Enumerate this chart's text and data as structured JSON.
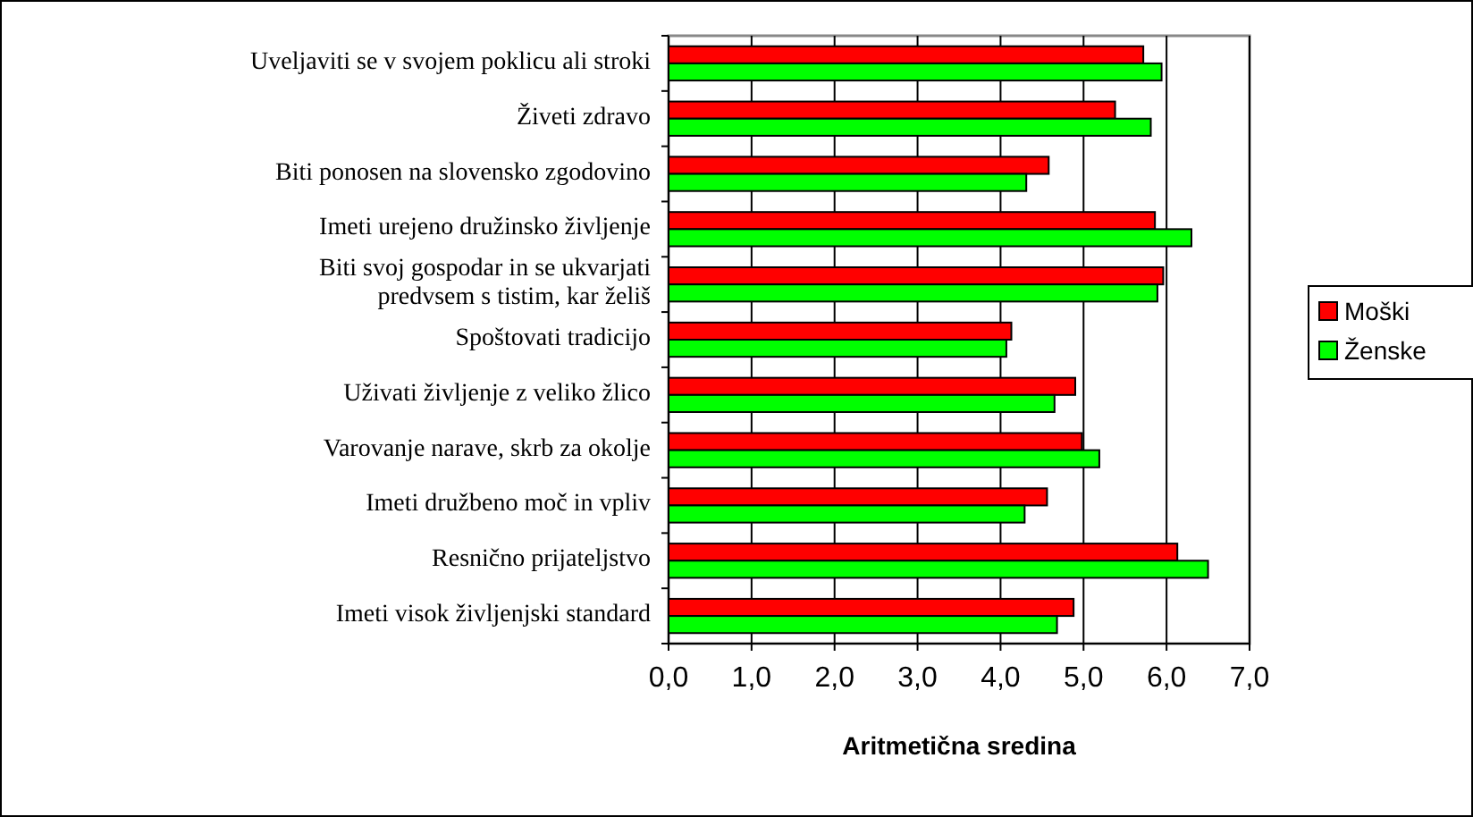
{
  "chart_data": {
    "type": "bar",
    "orientation": "horizontal",
    "xlabel": "Aritmetična sredina",
    "categories": [
      "Uveljaviti se v svojem poklicu ali stroki",
      "Živeti zdravo",
      "Biti ponosen na slovensko zgodovino",
      "Imeti urejeno družinsko življenje",
      "Biti svoj gospodar in se ukvarjati predvsem s tistim, kar želiš",
      "Spoštovati tradicijo",
      "Uživati življenje z veliko žlico",
      "Varovanje narave, skrb za okolje",
      "Imeti družbeno moč in vpliv",
      "Resnično prijateljstvo",
      "Imeti visok življenjski standard"
    ],
    "series": [
      {
        "name": "Moški",
        "color": "#ff0000",
        "values": [
          5.72,
          5.38,
          4.58,
          5.86,
          5.96,
          4.13,
          4.9,
          4.98,
          4.56,
          6.13,
          4.88
        ]
      },
      {
        "name": "Ženske",
        "color": "#00ff00",
        "values": [
          5.94,
          5.81,
          4.31,
          6.3,
          5.89,
          4.07,
          4.65,
          5.19,
          4.29,
          6.5,
          4.68
        ]
      }
    ],
    "xlim": [
      0,
      7
    ],
    "xticks": [
      {
        "value": 0,
        "label": "0,0"
      },
      {
        "value": 1,
        "label": "1,0"
      },
      {
        "value": 2,
        "label": "2,0"
      },
      {
        "value": 3,
        "label": "3,0"
      },
      {
        "value": 4,
        "label": "4,0"
      },
      {
        "value": 5,
        "label": "5,0"
      },
      {
        "value": 6,
        "label": "6,0"
      },
      {
        "value": 7,
        "label": "7,0"
      }
    ],
    "grid": "x",
    "legend": "right"
  }
}
